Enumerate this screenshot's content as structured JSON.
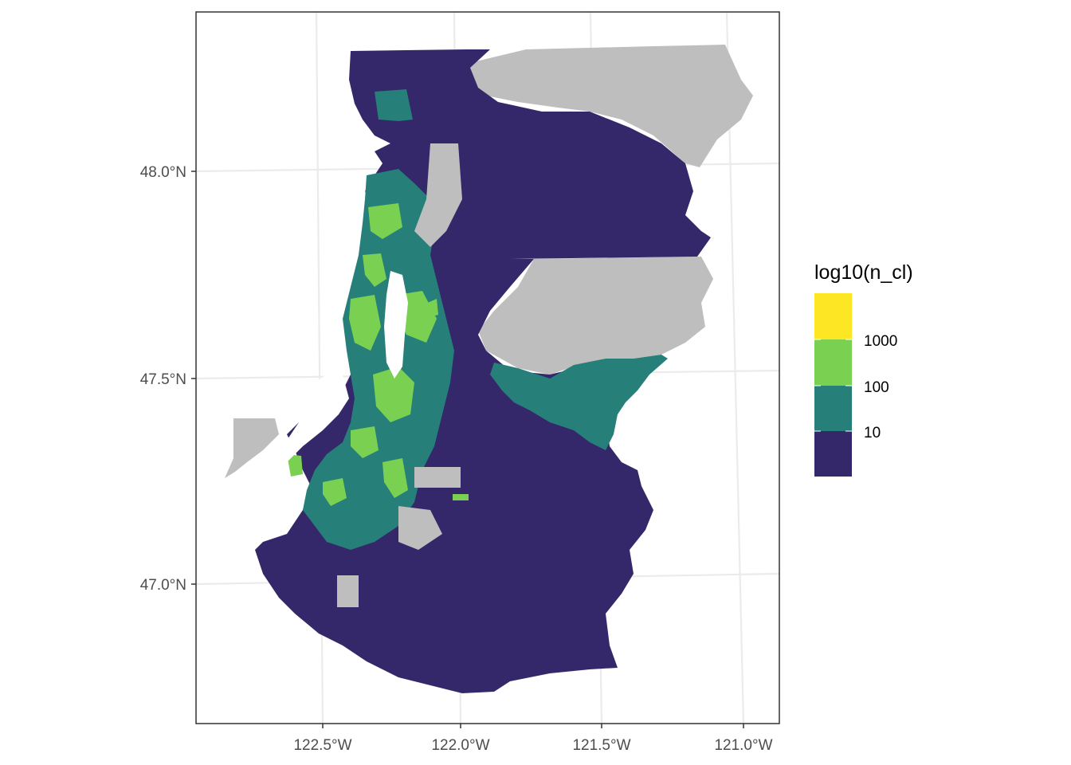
{
  "map": {
    "axes": {
      "y_ticks": [
        "48.0°N",
        "47.5°N",
        "47.0°N"
      ],
      "x_ticks": [
        "122.5°W",
        "122.0°W",
        "121.5°W",
        "121.0°W"
      ]
    },
    "legend": {
      "title": "log10(n_cl)",
      "placement": "right",
      "bins": [
        {
          "color": "#FDE725",
          "label": ""
        },
        {
          "color": "#7AD151",
          "label": "1000"
        },
        {
          "color": "#22A884",
          "label": "100"
        },
        {
          "color": "#414487",
          "label": "10"
        }
      ],
      "bottom_color": "#30266B"
    },
    "colors": {
      "na_fill": "#BEBEBE",
      "low": "#35286A",
      "mid_low": "#277F7A",
      "mid_high": "#7AD151",
      "high": "#FDE725",
      "grid": "#EBEBEB",
      "panel_border": "#333333"
    }
  }
}
